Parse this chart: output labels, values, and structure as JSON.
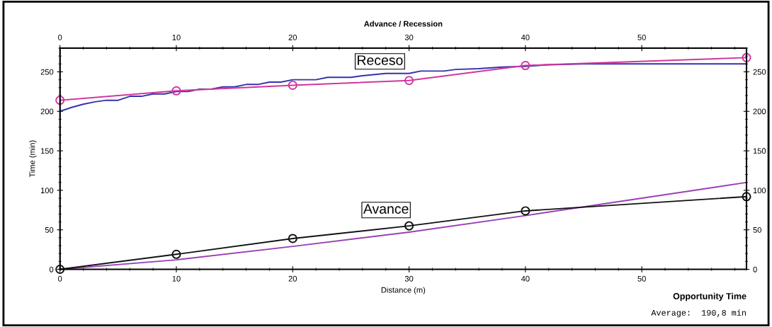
{
  "chart_data": {
    "type": "line",
    "title": "Advance / Recession",
    "xlabel": "Distance (m)",
    "ylabel": "Time (min)",
    "xlim": [
      0,
      59
    ],
    "xticks": [
      0,
      10,
      20,
      30,
      40,
      50
    ],
    "x2lim": [
      0,
      59
    ],
    "x2ticks": [
      0,
      10,
      20,
      30,
      40,
      50
    ],
    "ylim": [
      0,
      280
    ],
    "yticks": [
      0,
      50,
      100,
      150,
      200,
      250
    ],
    "y2lim": [
      0,
      280
    ],
    "y2ticks": [
      0,
      50,
      100,
      150,
      200,
      250
    ],
    "grid": false,
    "legend": false,
    "series": [
      {
        "color": "#3333aa",
        "marker": "none",
        "x": [
          0,
          1,
          2,
          3,
          4,
          5,
          6,
          7,
          8,
          9,
          10,
          11,
          12,
          13,
          14,
          15,
          16,
          17,
          18,
          19,
          20,
          22,
          23,
          25,
          26,
          28,
          30,
          31,
          33,
          34,
          36,
          38,
          40,
          42,
          45,
          59
        ],
        "values": [
          200,
          205,
          209,
          212,
          214,
          214,
          219,
          219,
          222,
          222,
          225,
          225,
          228,
          228,
          231,
          231,
          234,
          234,
          237,
          237,
          240,
          240,
          243,
          243,
          245,
          248,
          248,
          251,
          251,
          253,
          254,
          256,
          257,
          259,
          260,
          260
        ]
      },
      {
        "color": "#d0369e",
        "marker": "circle",
        "x": [
          0,
          10,
          20,
          30,
          40,
          59
        ],
        "values": [
          214,
          226,
          233,
          239,
          258,
          268
        ]
      },
      {
        "color": "#9a3fb5",
        "marker": "none",
        "x": [
          0,
          10,
          20,
          30,
          40,
          50,
          59
        ],
        "values": [
          0,
          12,
          29,
          47,
          68,
          90,
          110
        ]
      },
      {
        "color": "#111111",
        "marker": "circle",
        "x": [
          0,
          10,
          20,
          30,
          40,
          59
        ],
        "values": [
          0,
          19,
          39,
          55,
          74,
          92
        ]
      }
    ],
    "annotations": [
      "Receso",
      "Avance",
      "Opportunity Time",
      "Average:  190,8 min"
    ]
  }
}
